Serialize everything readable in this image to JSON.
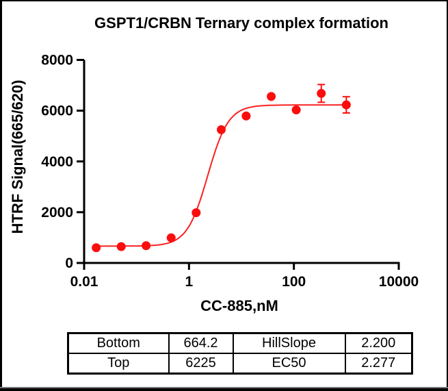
{
  "chart_data": {
    "type": "scatter",
    "title": "GSPT1/CRBN Ternary complex formation",
    "xlabel": "CC-885,nM",
    "ylabel": "HTRF Signal(665/620)",
    "x_scale": "log10",
    "xlim": [
      0.01,
      10000
    ],
    "ylim": [
      0,
      8000
    ],
    "x_ticks": [
      0.01,
      1,
      100,
      10000
    ],
    "x_tick_labels": [
      "0.01",
      "1",
      "100",
      "10000"
    ],
    "y_ticks": [
      0,
      2000,
      4000,
      6000,
      8000
    ],
    "y_tick_labels": [
      "0",
      "2000",
      "4000",
      "6000",
      "8000"
    ],
    "grid": false,
    "legend": "none",
    "series": [
      {
        "name": "CC-885",
        "color": "#fb0d0d",
        "marker": "circle",
        "points": [
          {
            "x": 0.017,
            "y": 600
          },
          {
            "x": 0.051,
            "y": 645
          },
          {
            "x": 0.152,
            "y": 680
          },
          {
            "x": 0.457,
            "y": 990
          },
          {
            "x": 1.37,
            "y": 1980
          },
          {
            "x": 4.12,
            "y": 5250
          },
          {
            "x": 12.3,
            "y": 5790
          },
          {
            "x": 37,
            "y": 6560
          },
          {
            "x": 111,
            "y": 6030
          },
          {
            "x": 333,
            "y": 6680,
            "err": 350
          },
          {
            "x": 1000,
            "y": 6230,
            "err": 320
          }
        ]
      }
    ],
    "fit": {
      "bottom": 664.2,
      "top": 6225,
      "hillslope": 2.2,
      "ec50": 2.277,
      "curve_color": "#fb2020",
      "x_start": 0.017,
      "x_end": 1000
    }
  },
  "fit_table": {
    "rows": [
      [
        {
          "label": "Bottom",
          "value": "664.2"
        },
        {
          "label": "HillSlope",
          "value": "2.200"
        }
      ],
      [
        {
          "label": "Top",
          "value": "6225"
        },
        {
          "label": "EC50",
          "value": "2.277"
        }
      ]
    ]
  }
}
